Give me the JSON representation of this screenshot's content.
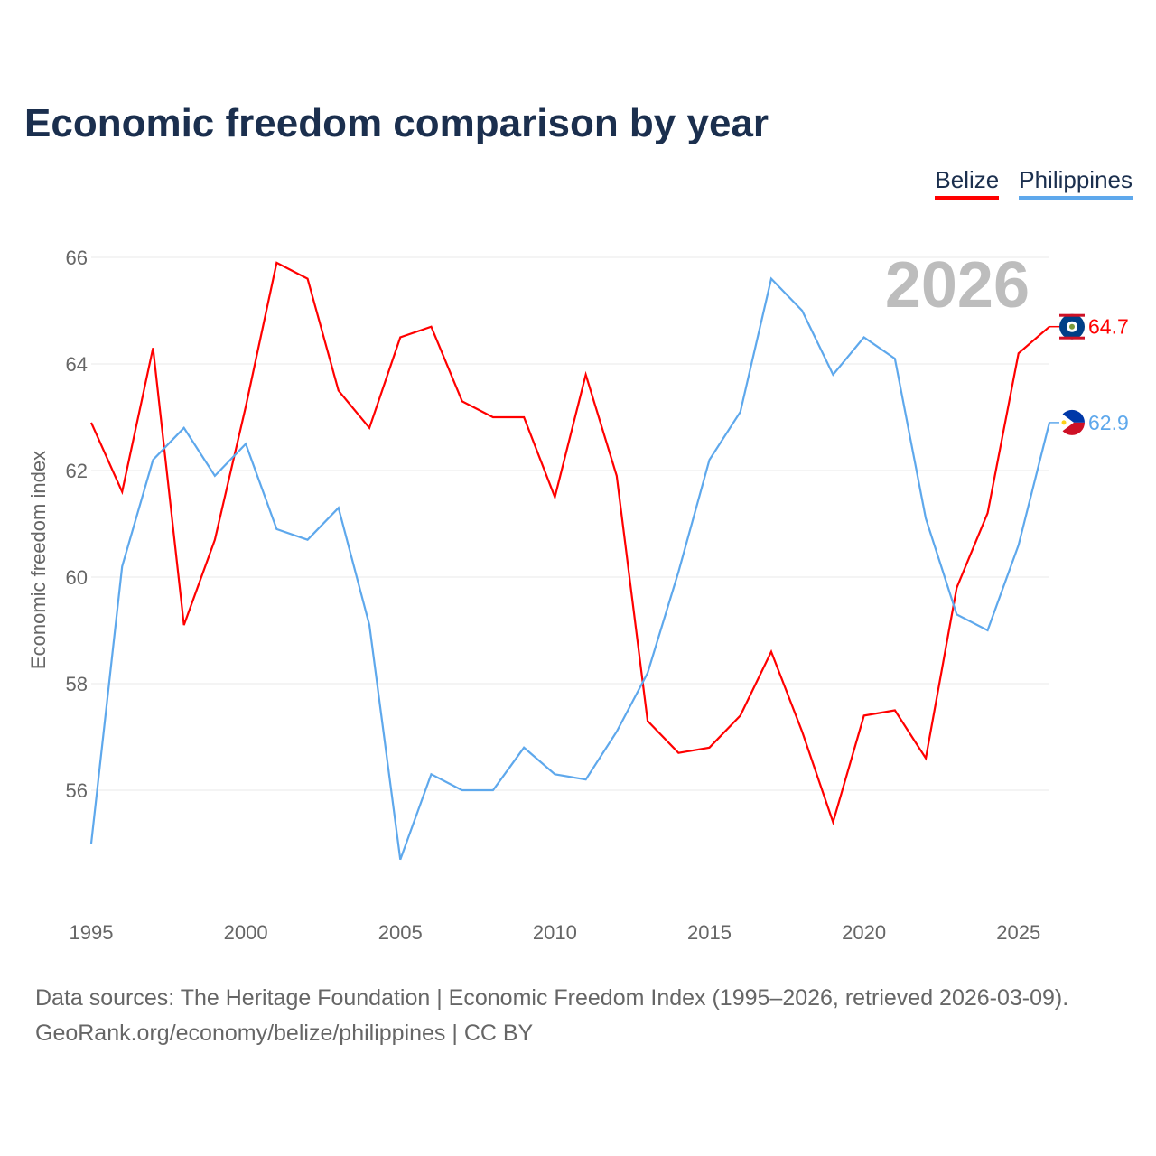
{
  "title": "Economic freedom comparison by year",
  "legend": [
    {
      "label": "Belize",
      "color": "#ff0000"
    },
    {
      "label": "Philippines",
      "color": "#5ea8ec"
    }
  ],
  "year_watermark": "2026",
  "footer": {
    "line1": "Data sources: The Heritage Foundation | Economic Freedom Index (1995–2026, retrieved 2026-03-09).",
    "line2": "GeoRank.org/economy/belize/philippines | CC BY"
  },
  "chart_data": {
    "type": "line",
    "title": "Economic freedom comparison by year",
    "xlabel": "",
    "ylabel": "Economic freedom index",
    "x": [
      1995,
      1996,
      1997,
      1998,
      1999,
      2000,
      2001,
      2002,
      2003,
      2004,
      2005,
      2006,
      2007,
      2008,
      2009,
      2010,
      2011,
      2012,
      2013,
      2014,
      2015,
      2016,
      2017,
      2018,
      2019,
      2020,
      2021,
      2022,
      2023,
      2024,
      2025,
      2026
    ],
    "xticks": [
      "1995",
      "2000",
      "2005",
      "2010",
      "2015",
      "2020",
      "2025"
    ],
    "yticks": [
      "56",
      "58",
      "60",
      "62",
      "64",
      "66"
    ],
    "xlim": [
      1995,
      2026
    ],
    "ylim": [
      54.2,
      66.2
    ],
    "grid": true,
    "legend_position": "top-right",
    "series": [
      {
        "name": "Belize",
        "color": "#ff0000",
        "end_label": "64.7",
        "values": [
          62.9,
          61.6,
          64.3,
          59.1,
          60.7,
          63.2,
          65.9,
          65.6,
          63.5,
          62.8,
          64.5,
          64.7,
          63.3,
          63.0,
          63.0,
          61.5,
          63.8,
          61.9,
          57.3,
          56.7,
          56.8,
          57.4,
          58.6,
          57.1,
          55.4,
          57.4,
          57.5,
          56.6,
          59.8,
          61.2,
          64.2,
          64.7
        ]
      },
      {
        "name": "Philippines",
        "color": "#5ea8ec",
        "end_label": "62.9",
        "values": [
          55.0,
          60.2,
          62.2,
          62.8,
          61.9,
          62.5,
          60.9,
          60.7,
          61.3,
          59.1,
          54.7,
          56.3,
          56.0,
          56.0,
          56.8,
          56.3,
          56.2,
          57.1,
          58.2,
          60.1,
          62.2,
          63.1,
          65.6,
          65.0,
          63.8,
          64.5,
          64.1,
          61.1,
          59.3,
          59.0,
          60.6,
          62.9
        ]
      }
    ]
  }
}
